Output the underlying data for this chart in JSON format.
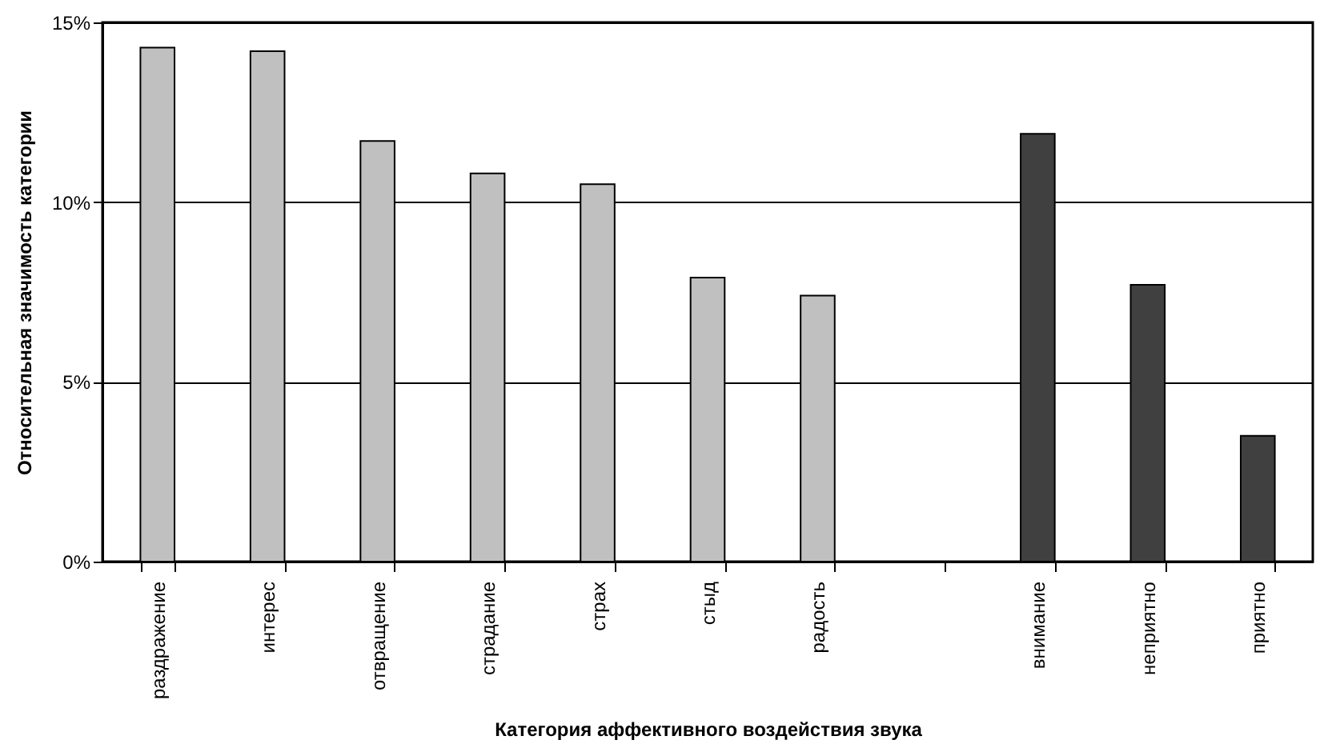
{
  "chart_data": {
    "type": "bar",
    "xlabel": "Категория аффективного воздействия звука",
    "ylabel": "Относительная значимость категории",
    "categories": [
      "раздражение",
      "интерес",
      "отвращение",
      "страдание",
      "страх",
      "стыд",
      "радость",
      null,
      "внимание",
      "неприятно",
      "приятно"
    ],
    "values": [
      14.3,
      14.2,
      11.7,
      10.8,
      10.5,
      7.9,
      7.4,
      null,
      11.9,
      7.7,
      3.5
    ],
    "colors": [
      "#c0c0c0",
      "#c0c0c0",
      "#c0c0c0",
      "#c0c0c0",
      "#c0c0c0",
      "#c0c0c0",
      "#c0c0c0",
      "#c0c0c0",
      "#404040",
      "#404040",
      "#404040"
    ],
    "ylim": [
      0,
      15
    ],
    "yticks": [
      {
        "value": 0,
        "label": "0%"
      },
      {
        "value": 5,
        "label": "5%"
      },
      {
        "value": 10,
        "label": "10%"
      },
      {
        "value": 15,
        "label": "15%"
      }
    ],
    "grid": "y"
  }
}
